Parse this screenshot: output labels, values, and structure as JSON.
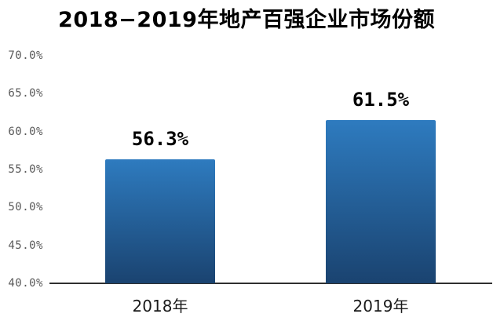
{
  "chart_data": {
    "type": "bar",
    "title": "2018−2019年地产百强企业市场份额",
    "categories": [
      "2018年",
      "2019年"
    ],
    "values": [
      56.3,
      61.5
    ],
    "value_labels": [
      "56.3%",
      "61.5%"
    ],
    "ylim": [
      40,
      70
    ],
    "ytick_step": 5,
    "ytick_labels": [
      "70.0%",
      "65.0%",
      "60.0%",
      "55.0%",
      "50.0%",
      "45.0%",
      "40.0%"
    ],
    "xlabel": "",
    "ylabel": "",
    "grid": false,
    "legend_position": "none",
    "data_labels_shown": true,
    "colors": {
      "bar_gradient_top": "#2E7BBF",
      "bar_gradient_bottom": "#1A4370",
      "axis_line": "#2F2F2F",
      "ytick_text": "#595959",
      "xtick_text": "#1A1A1A",
      "value_label_text": "#000000",
      "title_text": "#000000",
      "background": "#FFFFFF"
    }
  }
}
